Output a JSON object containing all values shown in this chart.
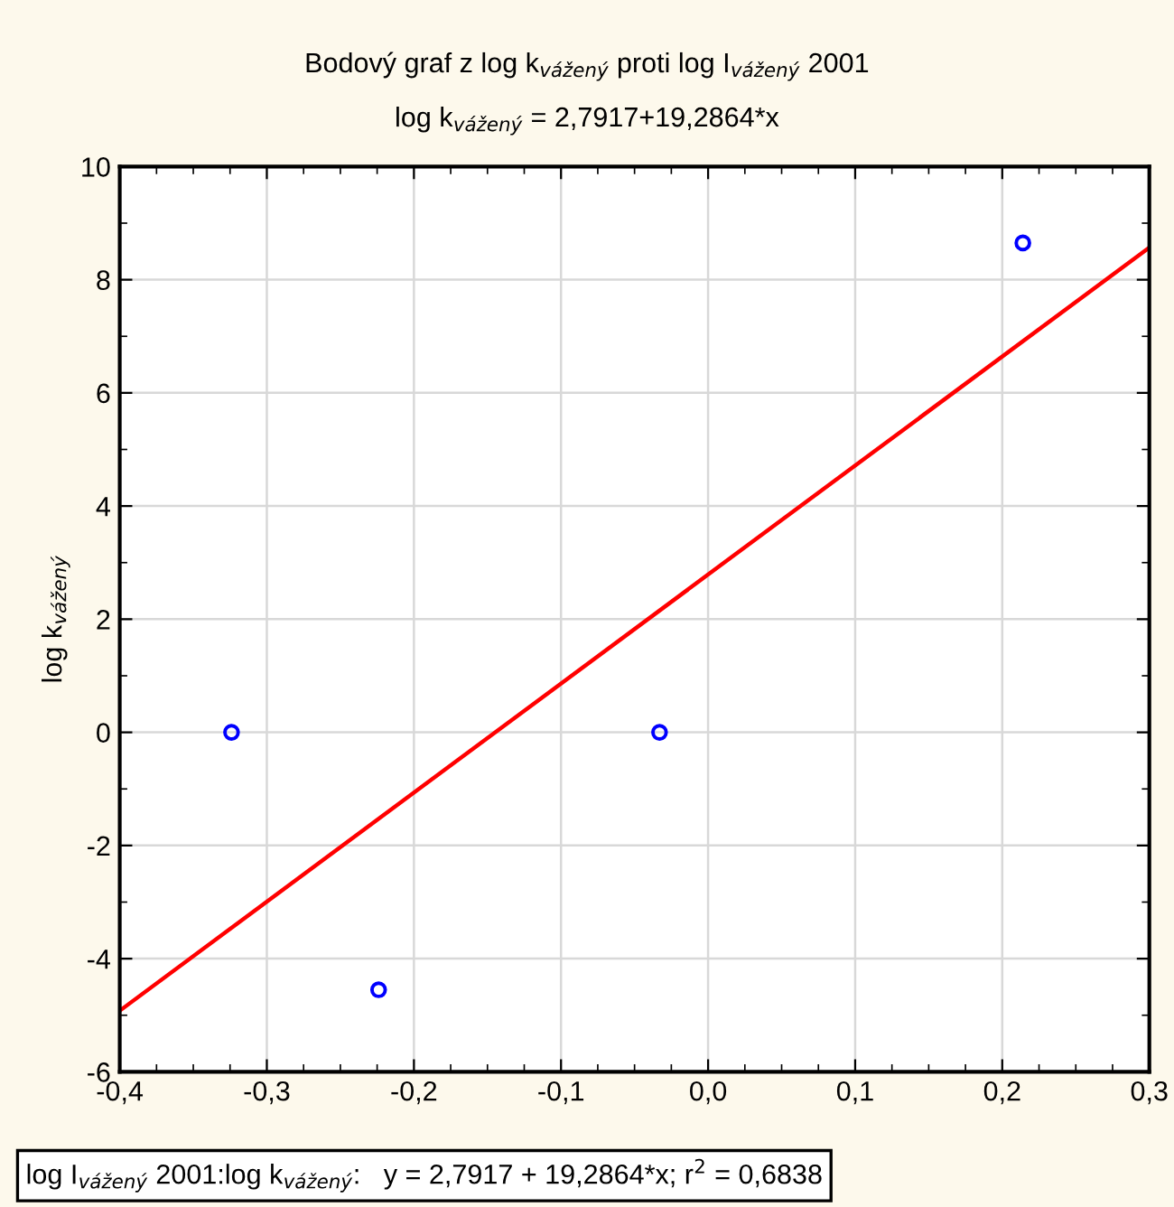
{
  "chart_data": {
    "type": "scatter",
    "title": "Bodový graf z log k$_{vážený}$ proti log I$_{vážený}$ 2001",
    "subtitle": "log k$_{vážený}$ = 2,7917+19,2864*x",
    "ylabel": "log k$_{vážený}$",
    "annotations": [
      "log I$_{vážený}$ 2001:log k$_{vážený}$:   y = 2,7917 + 19,2864*x; r$^{2}$ = 0,6838"
    ],
    "series": [
      {
        "color": "#0000ff",
        "x": [
          -0.324,
          -0.224,
          -0.033,
          0.214
        ],
        "values": [
          0,
          -4.55,
          0,
          8.65
        ],
        "marker": "circle"
      },
      {
        "type": "line",
        "color": "#ff0000",
        "x": [
          -0.4,
          0.3
        ],
        "values": [
          -4.92,
          8.57
        ],
        "line_style": "solid",
        "marker": "none"
      }
    ],
    "xlim": [
      -0.4,
      0.3
    ],
    "ylim": [
      -6,
      10
    ],
    "xticks": [
      {
        "value": -0.4,
        "label": "-0,4"
      },
      {
        "value": -0.3,
        "label": "-0,3"
      },
      {
        "value": -0.2,
        "label": "-0,2"
      },
      {
        "value": -0.1,
        "label": "-0,1"
      },
      {
        "value": 0,
        "label": "0,0"
      },
      {
        "value": 0.1,
        "label": "0,1"
      },
      {
        "value": 0.2,
        "label": "0,2"
      },
      {
        "value": 0.3,
        "label": "0,3"
      }
    ],
    "yticks": [
      -6,
      -4,
      -2,
      0,
      2,
      4,
      6,
      8,
      10
    ],
    "grid": true,
    "legend": false
  }
}
